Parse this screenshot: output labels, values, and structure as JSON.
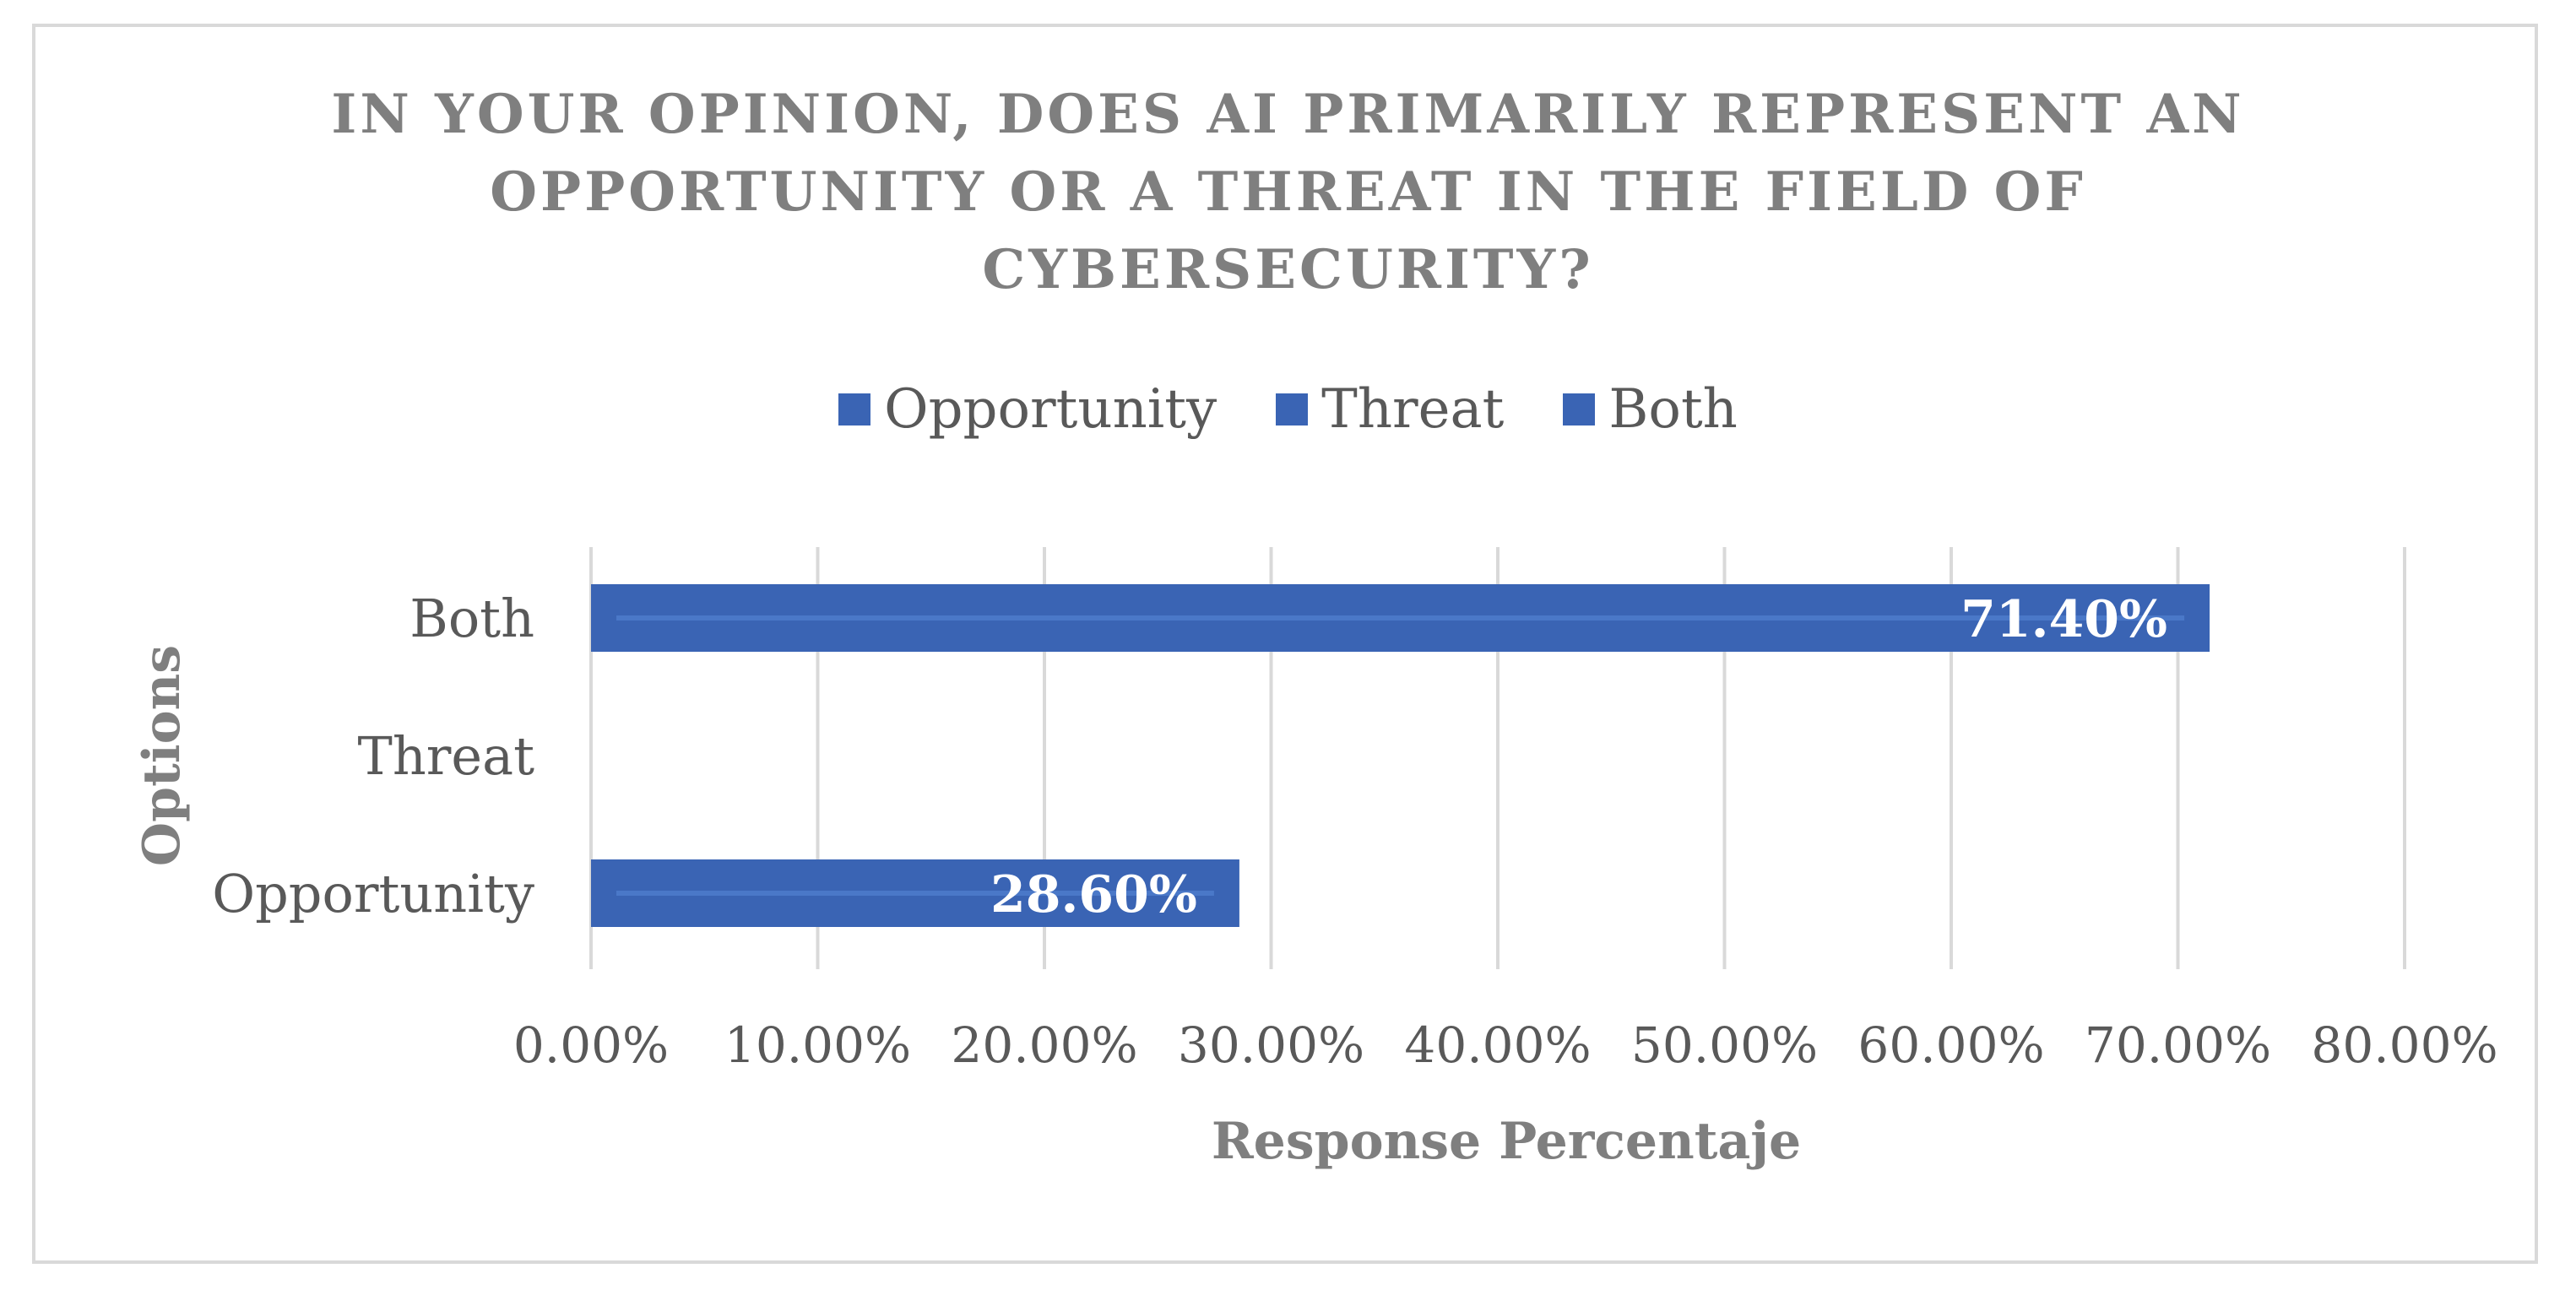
{
  "chart_data": {
    "type": "bar",
    "orientation": "horizontal",
    "title_lines": [
      "IN YOUR OPINION, DOES AI PRIMARILY REPRESENT AN",
      "OPPORTUNITY OR A THREAT IN THE FIELD OF",
      "CYBERSECURITY?"
    ],
    "categories": [
      "Opportunity",
      "Threat",
      "Both"
    ],
    "values": [
      28.6,
      0,
      71.4
    ],
    "data_labels": [
      "28.60%",
      "",
      "71.40%"
    ],
    "legend": [
      "Opportunity",
      "Threat",
      "Both"
    ],
    "legend_position": "top",
    "xlabel": "Response Percentaje",
    "ylabel": "Options",
    "xlim": [
      0,
      80
    ],
    "x_ticks": [
      0,
      10,
      20,
      30,
      40,
      50,
      60,
      70,
      80
    ],
    "x_tick_labels": [
      "0.00%",
      "10.00%",
      "20.00%",
      "30.00%",
      "40.00%",
      "50.00%",
      "60.00%",
      "70.00%",
      "80.00%"
    ],
    "grid": true,
    "bar_color": "#3a64b4",
    "gridline_color": "#d9d9d9"
  }
}
